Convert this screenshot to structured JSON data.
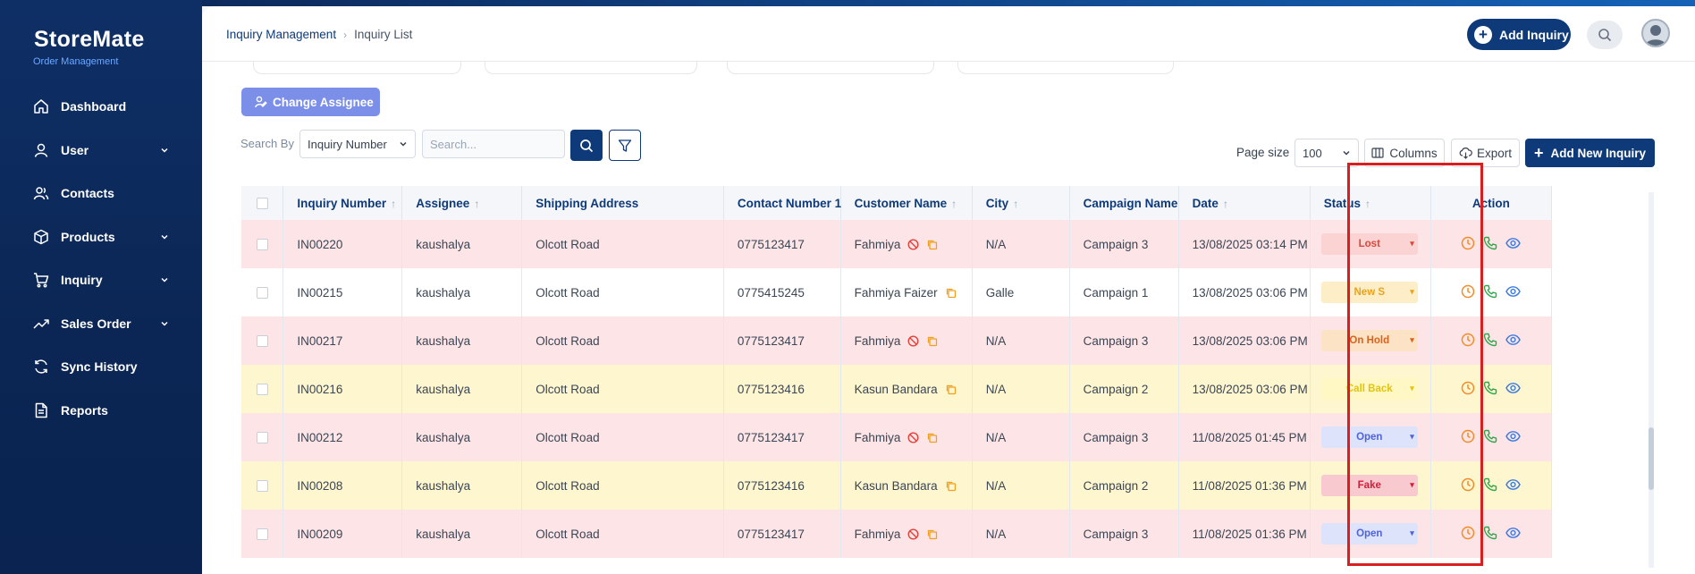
{
  "app": {
    "brand": "StoreMate",
    "brand_sub": "Order Management"
  },
  "sidebar": {
    "items": [
      {
        "label": "Dashboard",
        "icon": "home-icon",
        "expandable": false
      },
      {
        "label": "User",
        "icon": "user-icon",
        "expandable": true
      },
      {
        "label": "Contacts",
        "icon": "contacts-icon",
        "expandable": false
      },
      {
        "label": "Products",
        "icon": "box-icon",
        "expandable": true
      },
      {
        "label": "Inquiry",
        "icon": "cart-icon",
        "expandable": true
      },
      {
        "label": "Sales Order",
        "icon": "trend-icon",
        "expandable": true
      },
      {
        "label": "Sync History",
        "icon": "sync-icon",
        "expandable": false
      },
      {
        "label": "Reports",
        "icon": "document-icon",
        "expandable": false
      }
    ]
  },
  "header": {
    "breadcrumb_root": "Inquiry Management",
    "breadcrumb_current": "Inquiry List",
    "add_inquiry_label": "Add Inquiry"
  },
  "toolbar": {
    "change_assignee_label": "Change Assignee",
    "search_by_label": "Search By",
    "search_by_value": "Inquiry Number",
    "search_placeholder": "Search...",
    "page_size_label": "Page size",
    "page_size_value": "100",
    "columns_label": "Columns",
    "export_label": "Export",
    "add_new_label": "Add New Inquiry"
  },
  "table": {
    "columns": [
      {
        "label": "Inquiry Number",
        "sortable": true
      },
      {
        "label": "Assignee",
        "sortable": true
      },
      {
        "label": "Shipping Address",
        "sortable": false
      },
      {
        "label": "Contact Number 1",
        "sortable": false
      },
      {
        "label": "Customer Name",
        "sortable": true
      },
      {
        "label": "City",
        "sortable": true
      },
      {
        "label": "Campaign Name",
        "sortable": false
      },
      {
        "label": "Date",
        "sortable": true
      },
      {
        "label": "Status",
        "sortable": true
      },
      {
        "label": "Action",
        "sortable": false
      }
    ],
    "rows": [
      {
        "inquiry": "IN00220",
        "assignee": "kaushalya",
        "address": "Olcott Road",
        "contact": "0775123417",
        "customer": "Fahmiya",
        "blocked": true,
        "city": "N/A",
        "campaign": "Campaign 3",
        "date": "13/08/2025 03:14 PM",
        "status": "Lost",
        "row_color": "pink",
        "status_bg": "#fbd3d3",
        "status_fg": "#d9483b"
      },
      {
        "inquiry": "IN00215",
        "assignee": "kaushalya",
        "address": "Olcott Road",
        "contact": "0775415245",
        "customer": "Fahmiya Faizer",
        "blocked": false,
        "city": "Galle",
        "campaign": "Campaign 1",
        "date": "13/08/2025 03:06 PM",
        "status": "New S",
        "row_color": "white",
        "status_bg": "#fdeec8",
        "status_fg": "#eaa21a"
      },
      {
        "inquiry": "IN00217",
        "assignee": "kaushalya",
        "address": "Olcott Road",
        "contact": "0775123417",
        "customer": "Fahmiya",
        "blocked": true,
        "city": "N/A",
        "campaign": "Campaign 3",
        "date": "13/08/2025 03:06 PM",
        "status": "On Hold",
        "row_color": "pink",
        "status_bg": "#fde3c6",
        "status_fg": "#d9621c"
      },
      {
        "inquiry": "IN00216",
        "assignee": "kaushalya",
        "address": "Olcott Road",
        "contact": "0775123416",
        "customer": "Kasun Bandara",
        "blocked": false,
        "city": "N/A",
        "campaign": "Campaign 2",
        "date": "13/08/2025 03:06 PM",
        "status": "Call Back",
        "row_color": "yellow",
        "status_bg": "#fff7c4",
        "status_fg": "#e1c40f"
      },
      {
        "inquiry": "IN00212",
        "assignee": "kaushalya",
        "address": "Olcott Road",
        "contact": "0775123417",
        "customer": "Fahmiya",
        "blocked": true,
        "city": "N/A",
        "campaign": "Campaign 3",
        "date": "11/08/2025 01:45 PM",
        "status": "Open",
        "row_color": "pink",
        "status_bg": "#dde3fb",
        "status_fg": "#4f63d8"
      },
      {
        "inquiry": "IN00208",
        "assignee": "kaushalya",
        "address": "Olcott Road",
        "contact": "0775123416",
        "customer": "Kasun Bandara",
        "blocked": false,
        "city": "N/A",
        "campaign": "Campaign 2",
        "date": "11/08/2025 01:36 PM",
        "status": "Fake",
        "row_color": "yellow",
        "status_bg": "#f8c9cf",
        "status_fg": "#d11f3a"
      },
      {
        "inquiry": "IN00209",
        "assignee": "kaushalya",
        "address": "Olcott Road",
        "contact": "0775123417",
        "customer": "Fahmiya",
        "blocked": true,
        "city": "N/A",
        "campaign": "Campaign 3",
        "date": "11/08/2025 01:36 PM",
        "status": "Open",
        "row_color": "pink",
        "status_bg": "#dde3fb",
        "status_fg": "#4f63d8"
      }
    ]
  },
  "colors": {
    "primary": "#0e3a7a",
    "sidebar": "#0b2654",
    "accent_light": "#7b8ee8",
    "highlight": "#d81e1e"
  }
}
